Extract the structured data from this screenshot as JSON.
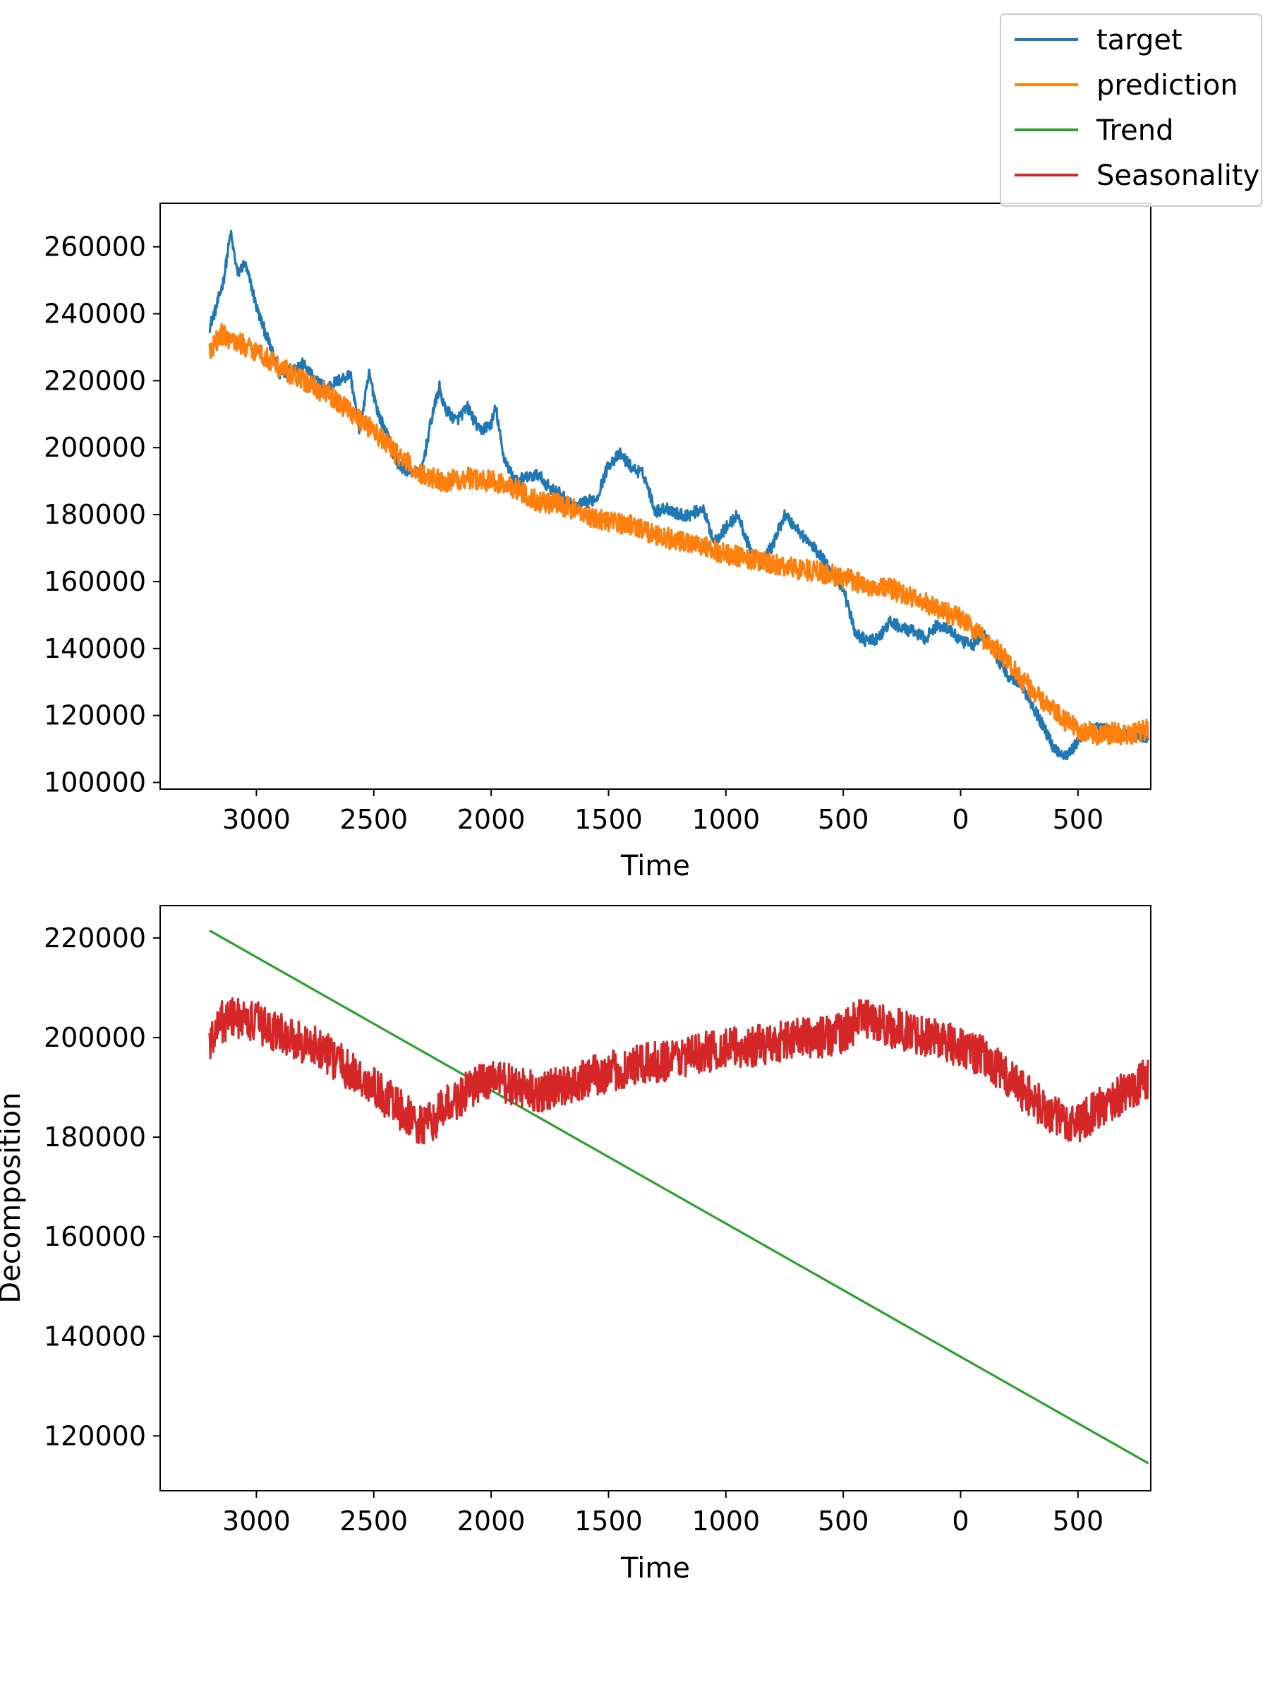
{
  "legend": {
    "entries": [
      {
        "label": "target",
        "color": "#1f77b4"
      },
      {
        "label": "prediction",
        "color": "#ff7f0e"
      },
      {
        "label": "Trend",
        "color": "#2ca02c"
      },
      {
        "label": "Seasonality",
        "color": "#d62728"
      }
    ]
  },
  "chart_data": [
    {
      "type": "line",
      "title": "",
      "xlabel": "Time",
      "ylabel": "",
      "x_tick_labels": [
        "3000",
        "2500",
        "2000",
        "1500",
        "1000",
        "500",
        "0",
        "500"
      ],
      "y_ticks": [
        100000,
        120000,
        140000,
        160000,
        180000,
        200000,
        220000,
        240000,
        260000
      ],
      "xlim": [
        -3410,
        810
      ],
      "ylim": [
        98000,
        273000
      ],
      "grid": false,
      "legend_position": "top-right",
      "series": [
        {
          "name": "target",
          "color": "#1f77b4",
          "x": [
            -3200,
            -3170,
            -3140,
            -3110,
            -3080,
            -3050,
            -3020,
            -3000,
            -2900,
            -2800,
            -2750,
            -2700,
            -2600,
            -2560,
            -2520,
            -2480,
            -2450,
            -2400,
            -2350,
            -2300,
            -2250,
            -2220,
            -2200,
            -2150,
            -2100,
            -2050,
            -2000,
            -1980,
            -1950,
            -1900,
            -1800,
            -1750,
            -1700,
            -1650,
            -1550,
            -1500,
            -1450,
            -1400,
            -1350,
            -1300,
            -1250,
            -1200,
            -1150,
            -1100,
            -1050,
            -1000,
            -950,
            -900,
            -850,
            -800,
            -750,
            -700,
            -650,
            -600,
            -550,
            -500,
            -450,
            -400,
            -350,
            -300,
            -250,
            -200,
            -150,
            -100,
            -50,
            0,
            50,
            100,
            150,
            200,
            250,
            300,
            350,
            400,
            450,
            500,
            550,
            600,
            650,
            700,
            750,
            800
          ],
          "values": [
            236000,
            242000,
            250000,
            264000,
            252000,
            255000,
            248000,
            242000,
            222000,
            225000,
            220000,
            218000,
            222000,
            205000,
            222000,
            210000,
            205000,
            195000,
            193000,
            192000,
            210000,
            218000,
            212000,
            208000,
            212000,
            205000,
            207000,
            212000,
            198000,
            190000,
            192000,
            188000,
            186000,
            182000,
            185000,
            195000,
            198000,
            194000,
            192000,
            181000,
            182000,
            180000,
            180000,
            182000,
            172000,
            176000,
            180000,
            170000,
            165000,
            171000,
            180000,
            176000,
            172000,
            168000,
            163000,
            158000,
            145000,
            142000,
            143000,
            148000,
            146000,
            145000,
            143000,
            147000,
            146000,
            142000,
            141000,
            144000,
            138000,
            132000,
            130000,
            124000,
            117000,
            110000,
            108000,
            112000,
            116000,
            116000,
            115000,
            114000,
            114000,
            113000
          ]
        },
        {
          "name": "prediction",
          "color": "#ff7f0e",
          "x": [
            -3200,
            -3150,
            -3100,
            -3000,
            -2900,
            -2800,
            -2700,
            -2600,
            -2500,
            -2400,
            -2300,
            -2200,
            -2100,
            -2000,
            -1900,
            -1800,
            -1700,
            -1600,
            -1500,
            -1400,
            -1300,
            -1200,
            -1100,
            -1000,
            -900,
            -800,
            -700,
            -600,
            -500,
            -400,
            -300,
            -200,
            -100,
            0,
            50,
            100,
            150,
            200,
            250,
            300,
            350,
            400,
            450,
            500,
            550,
            600,
            650,
            700,
            750,
            800
          ],
          "values": [
            228000,
            234000,
            232000,
            229000,
            224000,
            220000,
            216000,
            211000,
            205000,
            198000,
            192000,
            190000,
            191000,
            190000,
            188000,
            184000,
            183000,
            180000,
            178000,
            177000,
            174000,
            172000,
            171000,
            168000,
            167000,
            165000,
            164000,
            163000,
            161000,
            159000,
            158000,
            155000,
            152000,
            149000,
            146000,
            143000,
            140000,
            136000,
            132000,
            128000,
            124000,
            121000,
            118000,
            116000,
            115000,
            114000,
            115000,
            114000,
            115000,
            116000
          ]
        }
      ]
    },
    {
      "type": "line",
      "title": "",
      "xlabel": "Time",
      "ylabel": "Decomposition",
      "x_tick_labels": [
        "3000",
        "2500",
        "2000",
        "1500",
        "1000",
        "500",
        "0",
        "500"
      ],
      "y_ticks": [
        120000,
        140000,
        160000,
        180000,
        200000,
        220000
      ],
      "xlim": [
        -3410,
        810
      ],
      "ylim": [
        109000,
        226500
      ],
      "grid": false,
      "legend_position": "none",
      "series": [
        {
          "name": "Trend",
          "color": "#2ca02c",
          "x": [
            -3200,
            800
          ],
          "values": [
            221500,
            114500
          ]
        },
        {
          "name": "Seasonality",
          "color": "#d62728",
          "x": [
            -3200,
            -3150,
            -3100,
            -3000,
            -2900,
            -2800,
            -2700,
            -2600,
            -2500,
            -2400,
            -2300,
            -2250,
            -2200,
            -2100,
            -2000,
            -1900,
            -1800,
            -1700,
            -1600,
            -1500,
            -1400,
            -1300,
            -1200,
            -1100,
            -1000,
            -900,
            -800,
            -700,
            -600,
            -500,
            -450,
            -400,
            -350,
            -300,
            -200,
            -100,
            0,
            100,
            200,
            300,
            400,
            450,
            500,
            600,
            700,
            800
          ],
          "values": [
            198000,
            203000,
            204000,
            203000,
            201000,
            199000,
            197000,
            193000,
            190000,
            186000,
            182000,
            183000,
            186000,
            189000,
            192000,
            190000,
            189000,
            190000,
            192000,
            193000,
            194000,
            195000,
            196000,
            197000,
            198000,
            198000,
            199000,
            200000,
            200000,
            201000,
            203000,
            204000,
            203000,
            202000,
            201000,
            200000,
            198000,
            196000,
            192000,
            188000,
            184000,
            183000,
            183000,
            186000,
            189000,
            192000
          ]
        }
      ]
    }
  ]
}
